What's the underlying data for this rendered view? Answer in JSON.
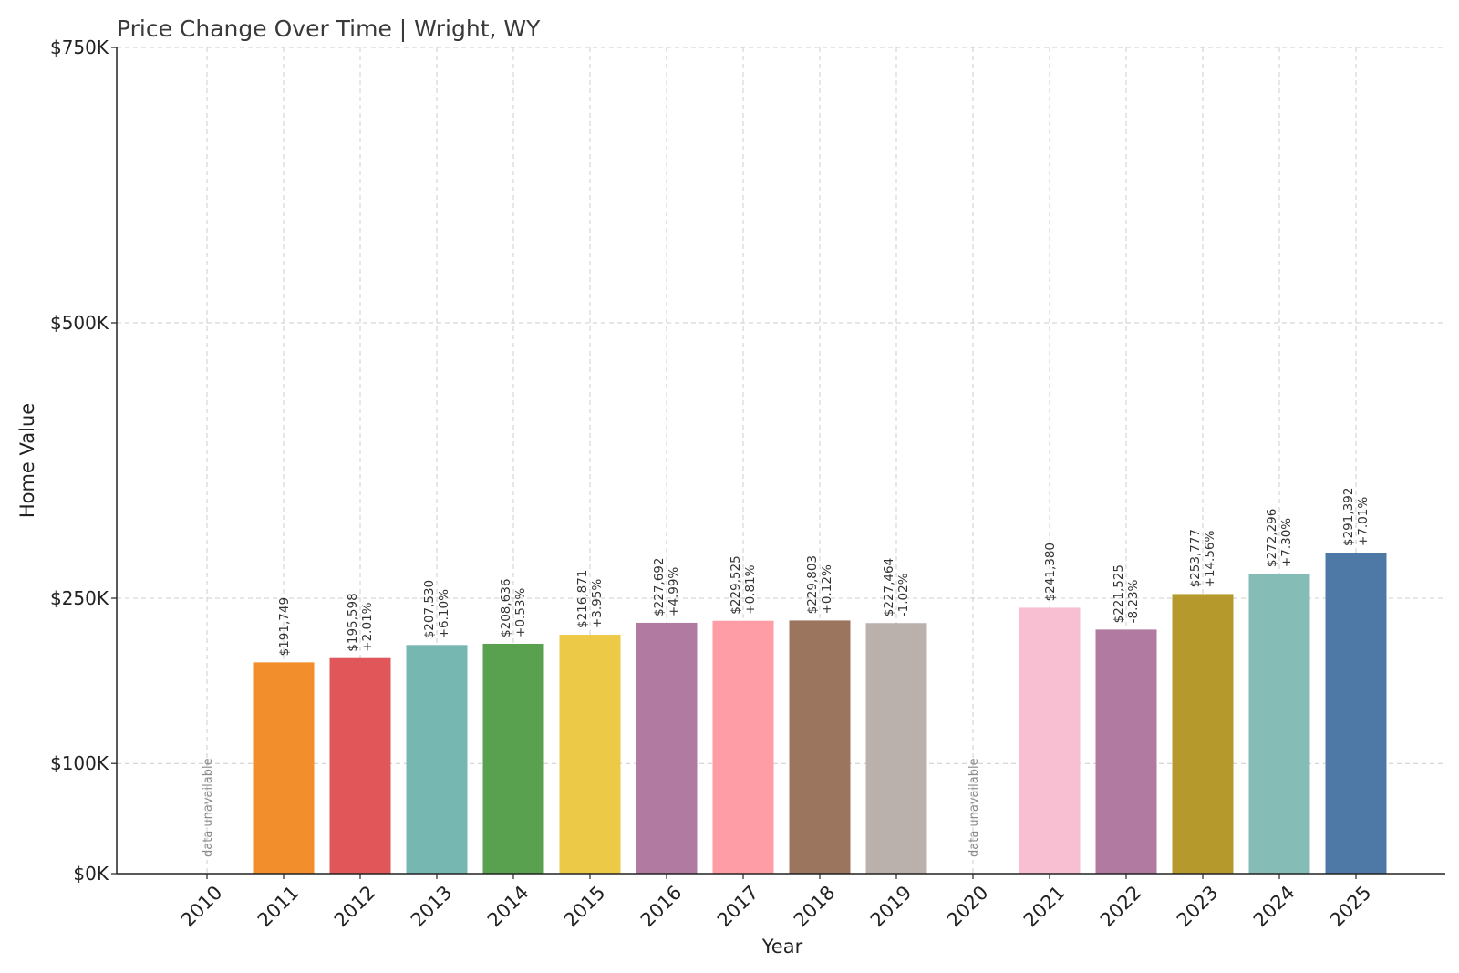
{
  "chart_data": {
    "type": "bar",
    "title": "Price Change Over Time | Wright, WY",
    "xlabel": "Year",
    "ylabel": "Home Value",
    "ylim": [
      0,
      750000
    ],
    "yticks": [
      0,
      100000,
      250000,
      500000,
      750000
    ],
    "ytick_labels": [
      "$0K",
      "$100K",
      "$250K",
      "$500K",
      "$750K"
    ],
    "grid": true,
    "categories": [
      "2010",
      "2011",
      "2012",
      "2013",
      "2014",
      "2015",
      "2016",
      "2017",
      "2018",
      "2019",
      "2020",
      "2021",
      "2022",
      "2023",
      "2024",
      "2025"
    ],
    "values": [
      null,
      191749,
      195598,
      207530,
      208636,
      216871,
      227692,
      229525,
      229803,
      227464,
      null,
      241380,
      221525,
      253777,
      272296,
      291392
    ],
    "value_labels": [
      "",
      "$191,749",
      "$195,598",
      "$207,530",
      "$208,636",
      "$216,871",
      "$227,692",
      "$229,525",
      "$229,803",
      "$227,464",
      "",
      "$241,380",
      "$221,525",
      "$253,777",
      "$272,296",
      "$291,392"
    ],
    "change_labels": [
      "",
      "",
      "+2.01%",
      "+6.10%",
      "+0.53%",
      "+3.95%",
      "+4.99%",
      "+0.81%",
      "+0.12%",
      "-1.02%",
      "",
      "",
      "-8.23%",
      "+14.56%",
      "+7.30%",
      "+7.01%"
    ],
    "na_label": "data unavailable",
    "colors": [
      "#f28e2b",
      "#f28e2b",
      "#e15759",
      "#76b7b2",
      "#59a14f",
      "#edc948",
      "#b07aa1",
      "#ff9da7",
      "#9c755f",
      "#bab0ac",
      "#bab0ac",
      "#f8bfd2",
      "#b07aa1",
      "#b5992c",
      "#86bcb6",
      "#4e79a7"
    ]
  }
}
